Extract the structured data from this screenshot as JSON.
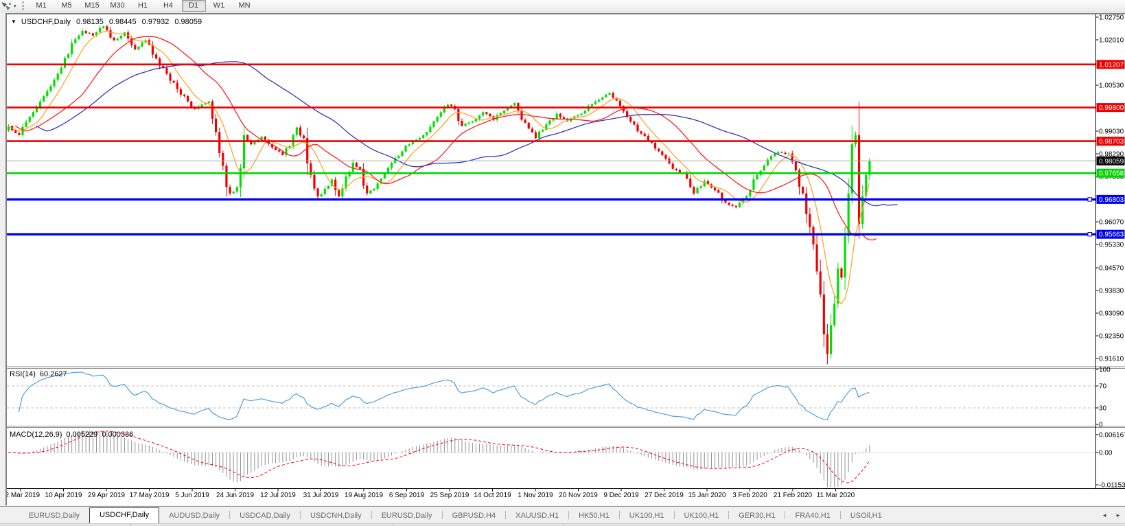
{
  "toolbar": {
    "icon": "chart-cursor-icon",
    "caret_glyph": "▾",
    "periods": [
      "M1",
      "M5",
      "M15",
      "M30",
      "H1",
      "H4",
      "D1",
      "W1",
      "MN"
    ],
    "active_period": "D1"
  },
  "title": {
    "caret": "▼",
    "symbol": "USDCHF,Daily",
    "open": "0.98135",
    "high": "0.98445",
    "low": "0.97932",
    "close": "0.98059"
  },
  "chart_data": {
    "type": "candlestick",
    "symbol": "USDCHF",
    "timeframe": "Daily",
    "num_bars": 246,
    "current_price": 0.98059,
    "close_keypoints": [
      [
        0,
        0.992
      ],
      [
        3,
        0.989
      ],
      [
        6,
        0.995
      ],
      [
        9,
        1.0
      ],
      [
        12,
        1.005
      ],
      [
        15,
        1.011
      ],
      [
        18,
        1.019
      ],
      [
        21,
        1.023
      ],
      [
        24,
        1.0215
      ],
      [
        27,
        1.0245
      ],
      [
        30,
        1.02
      ],
      [
        33,
        1.0225
      ],
      [
        36,
        1.017
      ],
      [
        39,
        1.02
      ],
      [
        42,
        1.014
      ],
      [
        45,
        1.009
      ],
      [
        48,
        1.004
      ],
      [
        51,
        1.0
      ],
      [
        53,
        0.9975
      ],
      [
        55,
        0.999
      ],
      [
        57,
        1.0
      ],
      [
        59,
        0.99
      ],
      [
        61,
        0.979
      ],
      [
        63,
        0.97
      ],
      [
        65,
        0.972
      ],
      [
        67,
        0.989
      ],
      [
        69,
        0.986
      ],
      [
        72,
        0.9885
      ],
      [
        75,
        0.985
      ],
      [
        78,
        0.9825
      ],
      [
        80,
        0.9855
      ],
      [
        82,
        0.9915
      ],
      [
        84,
        0.988
      ],
      [
        86,
        0.976
      ],
      [
        88,
        0.969
      ],
      [
        90,
        0.9715
      ],
      [
        92,
        0.9745
      ],
      [
        94,
        0.969
      ],
      [
        96,
        0.9755
      ],
      [
        98,
        0.98
      ],
      [
        100,
        0.978
      ],
      [
        102,
        0.97
      ],
      [
        104,
        0.9715
      ],
      [
        107,
        0.9765
      ],
      [
        110,
        0.9815
      ],
      [
        113,
        0.9855
      ],
      [
        116,
        0.9875
      ],
      [
        119,
        0.99
      ],
      [
        122,
        0.995
      ],
      [
        125,
        0.999
      ],
      [
        127,
        0.9975
      ],
      [
        129,
        0.992
      ],
      [
        132,
        0.9935
      ],
      [
        135,
        0.9965
      ],
      [
        138,
        0.994
      ],
      [
        141,
        0.997
      ],
      [
        144,
        0.9995
      ],
      [
        147,
        0.993
      ],
      [
        150,
        0.988
      ],
      [
        153,
        0.9925
      ],
      [
        156,
        0.996
      ],
      [
        159,
        0.9935
      ],
      [
        162,
        0.9955
      ],
      [
        165,
        0.9985
      ],
      [
        168,
        1.0005
      ],
      [
        171,
        1.0028
      ],
      [
        174,
        0.9985
      ],
      [
        177,
        0.9935
      ],
      [
        180,
        0.9895
      ],
      [
        183,
        0.9865
      ],
      [
        186,
        0.9825
      ],
      [
        189,
        0.978
      ],
      [
        192,
        0.9765
      ],
      [
        195,
        0.97
      ],
      [
        198,
        0.974
      ],
      [
        201,
        0.971
      ],
      [
        204,
        0.967
      ],
      [
        207,
        0.9655
      ],
      [
        210,
        0.969
      ],
      [
        213,
        0.976
      ],
      [
        216,
        0.981
      ],
      [
        219,
        0.9835
      ],
      [
        222,
        0.983
      ],
      [
        224,
        0.9775
      ],
      [
        226,
        0.97
      ],
      [
        228,
        0.959
      ],
      [
        230,
        0.9445
      ],
      [
        231,
        0.937
      ],
      [
        232,
        0.924
      ],
      [
        233,
        0.9175
      ],
      [
        234,
        0.927
      ],
      [
        235,
        0.934
      ],
      [
        236,
        0.9455
      ],
      [
        237,
        0.9425
      ],
      [
        238,
        0.956
      ],
      [
        239,
        0.97
      ],
      [
        240,
        0.986
      ],
      [
        241,
        0.989
      ],
      [
        242,
        0.96
      ],
      [
        243,
        0.969
      ],
      [
        244,
        0.976
      ],
      [
        245,
        0.98059
      ]
    ],
    "y_ticks": [
      "1.02750",
      "1.02010",
      "1.00530",
      "0.99030",
      "0.98290",
      "0.97550",
      "0.96070",
      "0.95330",
      "0.94570",
      "0.93830",
      "0.93090",
      "0.92350",
      "0.91610"
    ],
    "x_labels": [
      "22 Mar 2019",
      "10 Apr 2019",
      "29 Apr 2019",
      "17 May 2019",
      "5 Jun 2019",
      "24 Jun 2019",
      "12 Jul 2019",
      "31 Jul 2019",
      "19 Aug 2019",
      "6 Sep 2019",
      "25 Sep 2019",
      "14 Oct 2019",
      "1 Nov 2019",
      "20 Nov 2019",
      "9 Dec 2019",
      "27 Dec 2019",
      "15 Jan 2020",
      "3 Feb 2020",
      "21 Feb 2020",
      "11 Mar 2020"
    ],
    "hlines": [
      {
        "price": 1.01207,
        "label": "1.01207",
        "color": "#ee0000",
        "width": 2.6,
        "handles": false
      },
      {
        "price": 0.998,
        "label": "0.99800",
        "color": "#ee0000",
        "width": 2.6,
        "handles": false
      },
      {
        "price": 0.98703,
        "label": "0.98703",
        "color": "#ee0000",
        "width": 2.6,
        "handles": false
      },
      {
        "price": 0.97658,
        "label": "0.97658",
        "color": "#00d300",
        "width": 2.6,
        "handles": false
      },
      {
        "price": 0.96803,
        "label": "0.96803",
        "color": "#0000f0",
        "width": 3.4,
        "handles": true
      },
      {
        "price": 0.95663,
        "label": "0.95663",
        "color": "#0000f0",
        "width": 3.4,
        "handles": true
      }
    ],
    "price_marker": {
      "label": "0.98059",
      "bg": "#000000",
      "line_color": "#a8a8a8"
    },
    "moving_averages": [
      {
        "name": "fast-ma",
        "period": 8,
        "shift": 0,
        "color": "#ffa428"
      },
      {
        "name": "medium-ma",
        "period": 20,
        "shift": 2,
        "color": "#ff2020"
      },
      {
        "name": "slow-ma",
        "period": 48,
        "shift": 8,
        "color": "#3434bc"
      }
    ],
    "indicators": {
      "rsi": {
        "label": "RSI(14)",
        "value": "60.2627",
        "period": 14,
        "levels": [
          70,
          30
        ],
        "axis": [
          "100",
          "70",
          "30",
          "0"
        ],
        "line_color": "#4da0e0",
        "ylim": [
          0,
          100
        ]
      },
      "macd": {
        "label": "MACD(12,26,9)",
        "main_value": "0.005229",
        "signal_value": "0.000336",
        "fast": 12,
        "slow": 26,
        "signal": 9,
        "axis": [
          "0.006167",
          "0.00",
          "-0.011533"
        ],
        "axis_values": [
          0.006167,
          0.0,
          -0.011533
        ],
        "histogram_color": "#909090",
        "signal_color": "#f00000"
      }
    },
    "colors": {
      "up": "#00e000",
      "down": "#f00000",
      "background": "#ffffff",
      "axis_text": "#000000",
      "grid_dash": "#c0c0c0"
    }
  },
  "tabs": {
    "items": [
      {
        "label": "EURUSD,Daily",
        "active": false
      },
      {
        "label": "USDCHF,Daily",
        "active": true
      },
      {
        "label": "AUDUSD,Daily",
        "active": false
      },
      {
        "label": "USDCAD,Daily",
        "active": false
      },
      {
        "label": "USDCNH,Daily",
        "active": false
      },
      {
        "label": "EURUSD,Daily",
        "active": false
      },
      {
        "label": "GBPUSD,H4",
        "active": false
      },
      {
        "label": "XAUUSD,H1",
        "active": false
      },
      {
        "label": "HK50,H1",
        "active": false
      },
      {
        "label": "UK100,H1",
        "active": false
      },
      {
        "label": "UK100,H1",
        "active": false
      },
      {
        "label": "GER30,H1",
        "active": false
      },
      {
        "label": "FRA40,H1",
        "active": false
      },
      {
        "label": "USOil,H1",
        "active": false
      }
    ],
    "scroll_left": "◄",
    "scroll_right": "►"
  }
}
